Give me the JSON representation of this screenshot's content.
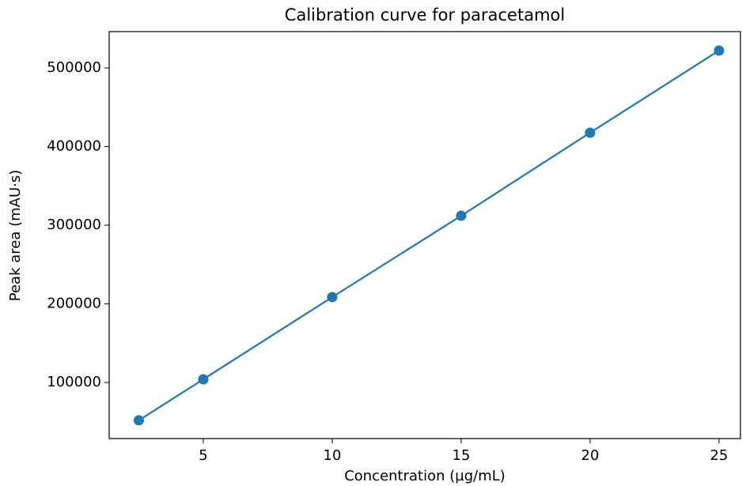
{
  "chart_data": {
    "type": "line",
    "title": "Calibration curve for paracetamol",
    "x_label": "Concentration (µg/mL)",
    "y_label": "Peak area (mAU·s)",
    "x": [
      2.5,
      5,
      10,
      15,
      20,
      25
    ],
    "series": [
      {
        "name": "Peak area",
        "color": "#1f77b4",
        "values": [
          51800,
          104000,
          208500,
          312000,
          417600,
          522100
        ]
      }
    ],
    "xlim": [
      1.35,
      25.83
    ],
    "xticks": [
      5,
      10,
      15,
      20,
      25
    ],
    "ylim": [
      28600,
      546200
    ],
    "yticks": [
      100000,
      200000,
      300000,
      400000,
      500000
    ],
    "markers": true
  }
}
